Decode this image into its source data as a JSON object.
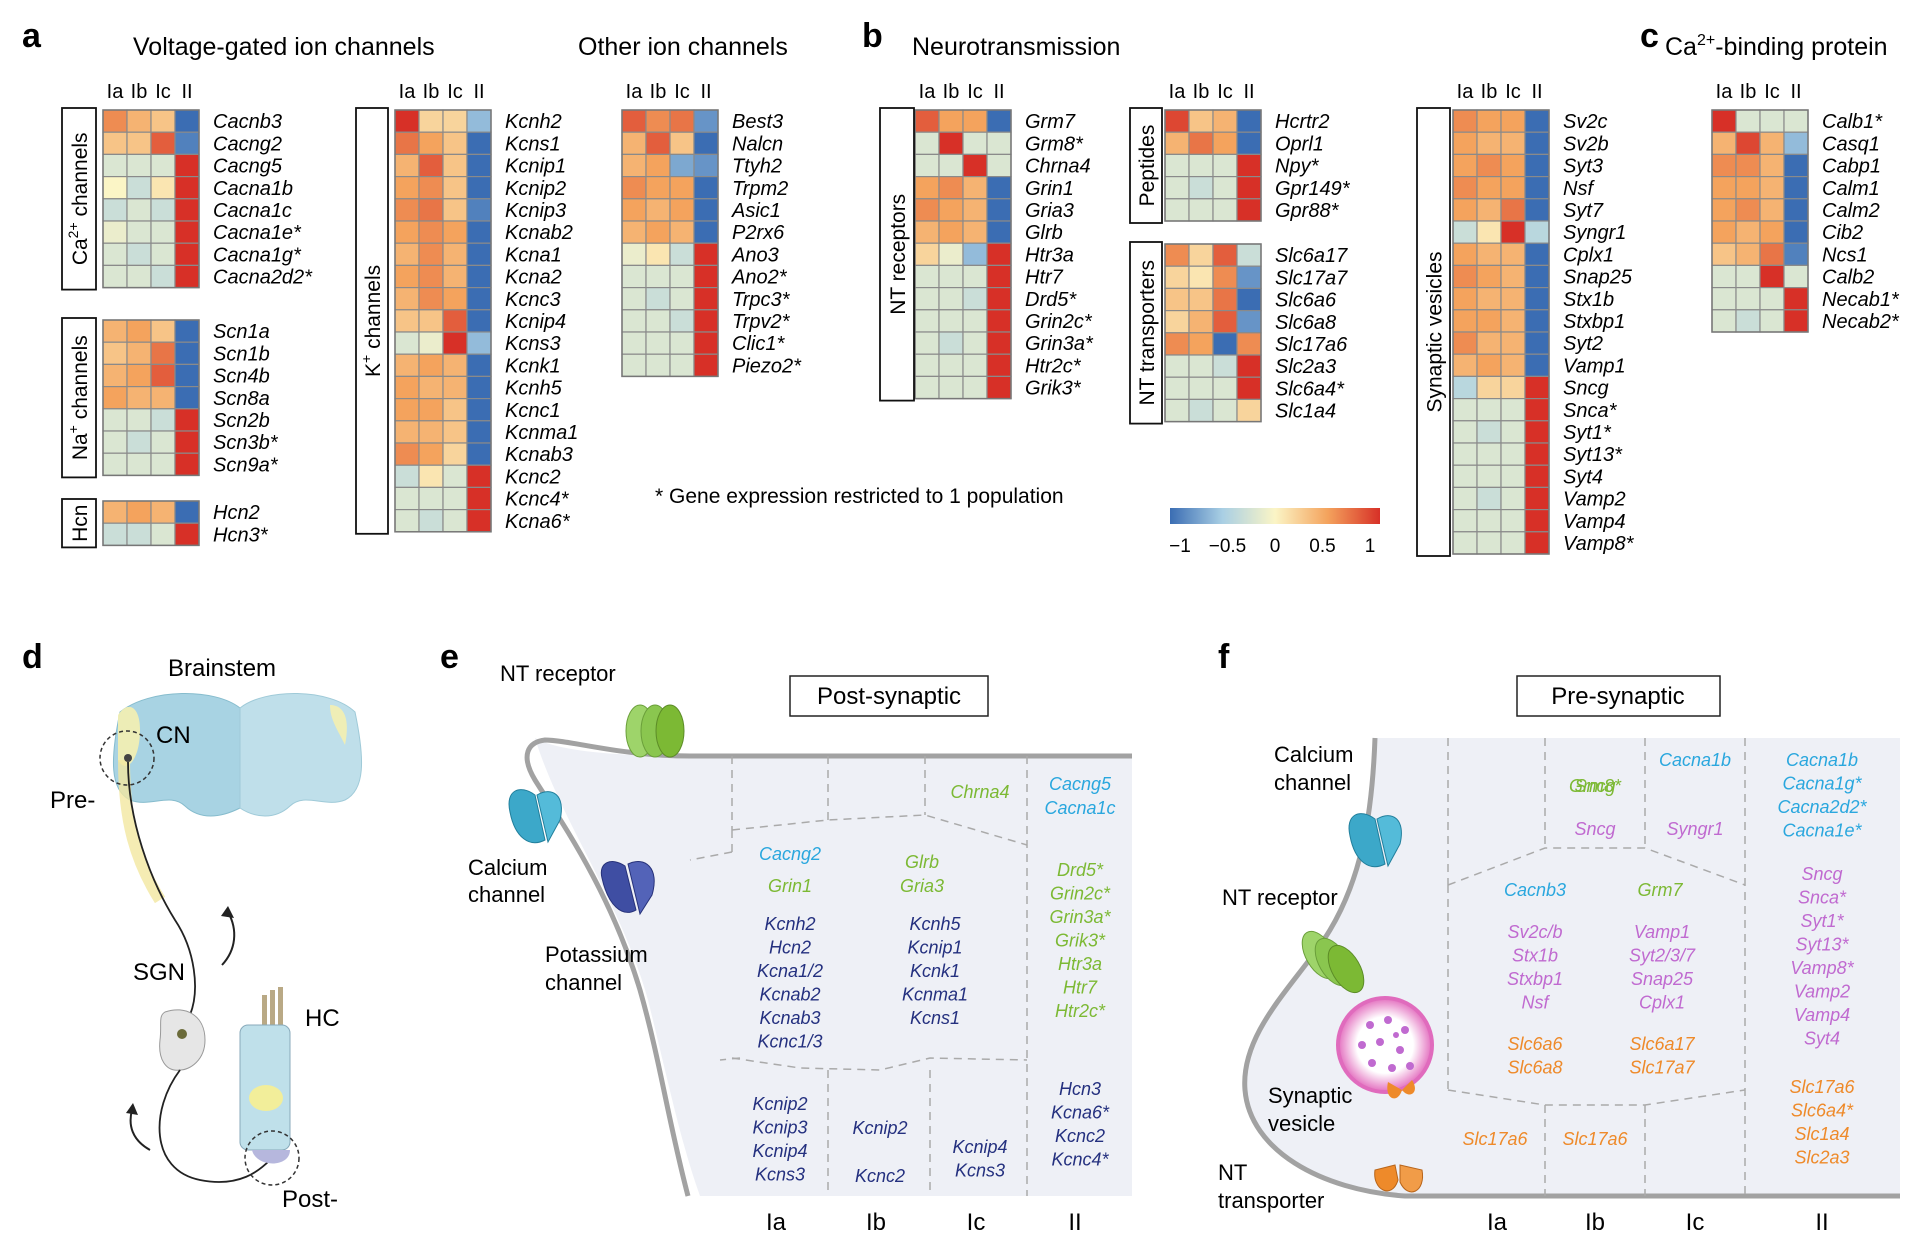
{
  "panels": {
    "a": {
      "letter": "a",
      "title_vg": "Voltage-gated ion channels",
      "title_other": "Other ion channels"
    },
    "b": {
      "letter": "b",
      "title": "Neurotransmission"
    },
    "c": {
      "letter": "c",
      "title_main": "Ca",
      "title_sup": "2+",
      "title_rest": "-binding protein"
    },
    "d": {
      "letter": "d"
    },
    "e": {
      "letter": "e"
    },
    "f": {
      "letter": "f"
    }
  },
  "column_headers": [
    "Ia",
    "Ib",
    "Ic",
    "II"
  ],
  "note": "* Gene expression restricted to 1 population",
  "colorbar": {
    "ticks": [
      "−1",
      "−0.5",
      "0",
      "0.5",
      "1"
    ],
    "colors": [
      "#3b6db3",
      "#a9cfe4",
      "#fbf5c6",
      "#f4a35d",
      "#d73027"
    ]
  },
  "heatmaps": [
    {
      "id": "ca-channels",
      "group_main": "Ca",
      "group_sup": "2+",
      "group_rest": " channels",
      "genes": [
        "Cacnb3",
        "Cacng2",
        "Cacng5",
        "Cacna1b",
        "Cacna1c",
        "Cacna1e*",
        "Cacna1g*",
        "Cacna2d2*"
      ],
      "values": [
        [
          0.6,
          0.4,
          0.3,
          -1
        ],
        [
          0.3,
          0.3,
          0.8,
          -0.9
        ],
        [
          -0.2,
          -0.2,
          -0.2,
          1
        ],
        [
          0,
          -0.3,
          0.1,
          1
        ],
        [
          -0.3,
          -0.2,
          -0.3,
          1
        ],
        [
          -0.1,
          -0.2,
          -0.2,
          1
        ],
        [
          -0.2,
          -0.3,
          -0.2,
          1
        ],
        [
          -0.2,
          -0.2,
          -0.3,
          1
        ]
      ]
    },
    {
      "id": "na-channels",
      "group_main": "Na",
      "group_sup": "+",
      "group_rest": " channels",
      "genes": [
        "Scn1a",
        "Scn1b",
        "Scn4b",
        "Scn8a",
        "Scn2b",
        "Scn3b*",
        "Scn9a*"
      ],
      "values": [
        [
          0.4,
          0.5,
          0.3,
          -1
        ],
        [
          0.3,
          0.4,
          0.7,
          -1
        ],
        [
          0.4,
          0.5,
          0.8,
          -1
        ],
        [
          0.5,
          0.4,
          0.4,
          -1
        ],
        [
          -0.2,
          -0.2,
          -0.3,
          1
        ],
        [
          -0.2,
          -0.3,
          -0.2,
          1
        ],
        [
          -0.2,
          -0.2,
          -0.2,
          1
        ]
      ]
    },
    {
      "id": "hcn",
      "group_main": "Hcn",
      "group_sup": "",
      "group_rest": "",
      "genes": [
        "Hcn2",
        "Hcn3*"
      ],
      "values": [
        [
          0.4,
          0.5,
          0.4,
          -1
        ],
        [
          -0.3,
          -0.3,
          -0.2,
          1
        ]
      ]
    },
    {
      "id": "k-channels",
      "group_main": "K",
      "group_sup": "+",
      "group_rest": " channels",
      "genes": [
        "Kcnh2",
        "Kcns1",
        "Kcnip1",
        "Kcnip2",
        "Kcnip3",
        "Kcnab2",
        "Kcna1",
        "Kcna2",
        "Kcnc3",
        "Kcnip4",
        "Kcns3",
        "Kcnk1",
        "Kcnh5",
        "Kcnc1",
        "Kcnma1",
        "Kcnab3",
        "Kcnc2",
        "Kcnc4*",
        "Kcna6*"
      ],
      "values": [
        [
          1,
          0.2,
          0.2,
          -0.6
        ],
        [
          0.7,
          0.5,
          0.3,
          -1
        ],
        [
          0.4,
          0.8,
          0.3,
          -1
        ],
        [
          0.5,
          0.6,
          0.3,
          -1
        ],
        [
          0.6,
          0.7,
          0.3,
          -0.9
        ],
        [
          0.5,
          0.6,
          0.5,
          -1
        ],
        [
          0.4,
          0.6,
          0.4,
          -1
        ],
        [
          0.5,
          0.6,
          0.4,
          -1
        ],
        [
          0.4,
          0.6,
          0.5,
          -1
        ],
        [
          0.3,
          0.3,
          0.8,
          -1
        ],
        [
          -0.2,
          -0.1,
          1,
          -0.6
        ],
        [
          0.4,
          0.5,
          0.4,
          -1
        ],
        [
          0.5,
          0.4,
          0.4,
          -1
        ],
        [
          0.5,
          0.5,
          0.3,
          -1
        ],
        [
          0.4,
          0.4,
          0.3,
          -1
        ],
        [
          0.6,
          0.5,
          0.2,
          -1
        ],
        [
          -0.3,
          0.1,
          -0.2,
          1
        ],
        [
          -0.2,
          -0.2,
          -0.2,
          1
        ],
        [
          -0.2,
          -0.3,
          -0.2,
          1
        ]
      ]
    },
    {
      "id": "other-channels",
      "group_main": "",
      "group_sup": "",
      "group_rest": "",
      "genes": [
        "Best3",
        "Nalcn",
        "Ttyh2",
        "Trpm2",
        "Asic1",
        "P2rx6",
        "Ano3",
        "Ano2*",
        "Trpc3*",
        "Trpv2*",
        "Clic1*",
        "Piezo2*"
      ],
      "values": [
        [
          0.8,
          0.6,
          0.7,
          -0.8
        ],
        [
          0.4,
          0.8,
          0.3,
          -1
        ],
        [
          0.4,
          0.5,
          -0.7,
          -0.8
        ],
        [
          0.6,
          0.5,
          0.5,
          -1
        ],
        [
          0.5,
          0.4,
          0.5,
          -1
        ],
        [
          0.4,
          0.5,
          0.4,
          -1
        ],
        [
          -0.1,
          0.1,
          -0.3,
          1
        ],
        [
          -0.2,
          -0.2,
          -0.2,
          1
        ],
        [
          -0.2,
          -0.3,
          -0.2,
          1
        ],
        [
          -0.2,
          -0.2,
          -0.3,
          1
        ],
        [
          -0.2,
          -0.2,
          -0.2,
          1
        ],
        [
          -0.2,
          -0.2,
          -0.2,
          1
        ]
      ]
    },
    {
      "id": "nt-receptors",
      "group_main": "NT receptors",
      "group_sup": "",
      "group_rest": "",
      "genes": [
        "Grm7",
        "Grm8*",
        "Chrna4",
        "Grin1",
        "Gria3",
        "Glrb",
        "Htr3a",
        "Htr7",
        "Drd5*",
        "Grin2c*",
        "Grin3a*",
        "Htr2c*",
        "Grik3*"
      ],
      "values": [
        [
          0.8,
          0.5,
          0.5,
          -1
        ],
        [
          -0.2,
          1,
          -0.2,
          -0.2
        ],
        [
          -0.2,
          -0.2,
          1,
          -0.2
        ],
        [
          0.5,
          0.6,
          0.4,
          -1
        ],
        [
          0.6,
          0.5,
          0.4,
          -1
        ],
        [
          0.4,
          0.5,
          0.4,
          -1
        ],
        [
          0.2,
          -0.1,
          -0.6,
          1
        ],
        [
          -0.2,
          -0.2,
          -0.2,
          1
        ],
        [
          -0.2,
          -0.2,
          -0.3,
          1
        ],
        [
          -0.2,
          -0.2,
          -0.2,
          1
        ],
        [
          -0.2,
          -0.3,
          -0.2,
          1
        ],
        [
          -0.2,
          -0.2,
          -0.2,
          1
        ],
        [
          -0.2,
          -0.2,
          -0.2,
          1
        ]
      ]
    },
    {
      "id": "peptides",
      "group_main": "Peptides",
      "group_sup": "",
      "group_rest": "",
      "genes": [
        "Hcrtr2",
        "Oprl1",
        "Npy*",
        "Gpr149*",
        "Gpr88*"
      ],
      "values": [
        [
          0.9,
          0.3,
          0.4,
          -1
        ],
        [
          0.4,
          0.7,
          0.5,
          -1
        ],
        [
          -0.2,
          -0.2,
          -0.2,
          1
        ],
        [
          -0.2,
          -0.3,
          -0.2,
          1
        ],
        [
          -0.2,
          -0.2,
          -0.2,
          1
        ]
      ]
    },
    {
      "id": "nt-transporters",
      "group_main": "NT transporters",
      "group_sup": "",
      "group_rest": "",
      "genes": [
        "Slc6a17",
        "Slc17a7",
        "Slc6a6",
        "Slc6a8",
        "Slc17a6",
        "Slc2a3",
        "Slc6a4*",
        "Slc1a4"
      ],
      "values": [
        [
          0.6,
          0.2,
          0.8,
          -0.3
        ],
        [
          0.2,
          0.1,
          0.6,
          -0.8
        ],
        [
          0.3,
          0.3,
          0.7,
          -1
        ],
        [
          0.2,
          0.4,
          0.8,
          -0.8
        ],
        [
          0.6,
          0.5,
          -1,
          0.6
        ],
        [
          -0.2,
          -0.2,
          -0.3,
          1
        ],
        [
          -0.2,
          -0.2,
          -0.2,
          1
        ],
        [
          -0.2,
          -0.3,
          -0.2,
          0.2
        ]
      ]
    },
    {
      "id": "synaptic-vesicles",
      "group_main": "Synaptic vesicles",
      "group_sup": "",
      "group_rest": "",
      "genes": [
        "Sv2c",
        "Sv2b",
        "Syt3",
        "Nsf",
        "Syt7",
        "Syngr1",
        "Cplx1",
        "Snap25",
        "Stx1b",
        "Stxbp1",
        "Syt2",
        "Vamp1",
        "Sncg",
        "Snca*",
        "Syt1*",
        "Syt13*",
        "Syt4",
        "Vamp2",
        "Vamp4",
        "Vamp8*"
      ],
      "values": [
        [
          0.6,
          0.5,
          0.5,
          -1
        ],
        [
          0.5,
          0.4,
          0.4,
          -1
        ],
        [
          0.5,
          0.6,
          0.5,
          -1
        ],
        [
          0.6,
          0.5,
          0.5,
          -1
        ],
        [
          0.5,
          0.4,
          0.7,
          -1
        ],
        [
          -0.3,
          0.1,
          1,
          -0.4
        ],
        [
          0.5,
          0.4,
          0.4,
          -1
        ],
        [
          0.6,
          0.5,
          0.4,
          -1
        ],
        [
          0.5,
          0.4,
          0.4,
          -1
        ],
        [
          0.5,
          0.5,
          0.4,
          -1
        ],
        [
          0.6,
          0.4,
          0.4,
          -1
        ],
        [
          0.4,
          0.5,
          0.4,
          -1
        ],
        [
          -0.4,
          0.2,
          0.2,
          1
        ],
        [
          -0.2,
          -0.2,
          -0.2,
          1
        ],
        [
          -0.2,
          -0.3,
          -0.2,
          1
        ],
        [
          -0.2,
          -0.2,
          -0.2,
          1
        ],
        [
          -0.2,
          -0.2,
          -0.2,
          1
        ],
        [
          -0.2,
          -0.3,
          -0.2,
          1
        ],
        [
          -0.2,
          -0.2,
          -0.2,
          1
        ],
        [
          -0.2,
          -0.2,
          -0.2,
          1
        ]
      ]
    },
    {
      "id": "ca-binding",
      "group_main": "",
      "group_sup": "",
      "group_rest": "",
      "genes": [
        "Calb1*",
        "Casq1",
        "Cabp1",
        "Calm1",
        "Calm2",
        "Cib2",
        "Ncs1",
        "Calb2",
        "Necab1*",
        "Necab2*"
      ],
      "values": [
        [
          1,
          -0.2,
          -0.2,
          -0.2
        ],
        [
          0.4,
          0.9,
          0.4,
          -0.6
        ],
        [
          0.6,
          0.6,
          0.4,
          -1
        ],
        [
          0.5,
          0.5,
          0.4,
          -1
        ],
        [
          0.5,
          0.6,
          0.4,
          -1
        ],
        [
          0.5,
          0.4,
          0.5,
          -1
        ],
        [
          0.3,
          0.4,
          0.7,
          -0.9
        ],
        [
          -0.2,
          -0.2,
          1,
          -0.2
        ],
        [
          -0.2,
          -0.2,
          -0.2,
          1
        ],
        [
          -0.2,
          -0.3,
          -0.2,
          1
        ]
      ]
    }
  ],
  "panel_d": {
    "brainstem": "Brainstem",
    "cn": "CN",
    "pre": "Pre-",
    "sgn": "SGN",
    "hc": "HC",
    "post": "Post-"
  },
  "panel_e": {
    "box_title": "Post-synaptic",
    "labels": {
      "nt_receptor": "NT receptor",
      "calcium_channel": [
        "Calcium",
        "channel"
      ],
      "potassium_channel": [
        "Potassium",
        "channel"
      ]
    },
    "columns": [
      "Ia",
      "Ib",
      "Ic",
      "II"
    ],
    "top": {
      "ic": [
        "Chrna4"
      ],
      "ii": [
        "Cacng5",
        "Cacna1c"
      ]
    },
    "mid": {
      "ia_blue": [
        "Cacng2"
      ],
      "ia_green": [
        "Grin1"
      ],
      "ia_navy": [
        "Kcnh2",
        "Hcn2",
        "Kcna1/2",
        "Kcnab2",
        "Kcnab3",
        "Kcnc1/3"
      ],
      "ib_green": [
        "Glrb",
        "Gria3"
      ],
      "ib_navy": [
        "Kcnh5",
        "Kcnip1",
        "Kcnk1",
        "Kcnma1",
        "Kcns1"
      ],
      "ii_green": [
        "Drd5*",
        "Grin2c*",
        "Grin3a*",
        "Grik3*",
        "Htr3a",
        "Htr7",
        "Htr2c*"
      ]
    },
    "bottom": {
      "ia": [
        "Kcnip2",
        "Kcnip3",
        "Kcnip4",
        "Kcns3"
      ],
      "ib": [
        "Kcnip2",
        "Kcnc2"
      ],
      "ic": [
        "Kcnip4",
        "Kcns3"
      ],
      "ii": [
        "Hcn3",
        "Kcna6*",
        "Kcnc2",
        "Kcnc4*"
      ]
    }
  },
  "panel_f": {
    "box_title": "Pre-synaptic",
    "labels": {
      "calcium_channel": [
        "Calcium",
        "channel"
      ],
      "nt_receptor": "NT receptor",
      "synaptic_vesicle": [
        "Synaptic",
        "vesicle"
      ],
      "nt_transporter": [
        "NT",
        "transporter"
      ]
    },
    "columns": [
      "Ia",
      "Ib",
      "Ic",
      "II"
    ],
    "top": {
      "ib": [
        "Grm8*",
        "Sncg"
      ],
      "ic": [
        "Cacna1b",
        "Syngr1"
      ],
      "ii": [
        "Cacna1b",
        "Cacna1g*",
        "Cacna2d2*",
        "Cacna1e*"
      ]
    },
    "mid": {
      "ia_blue": [
        "Cacnb3"
      ],
      "ia_pink": [
        "Sv2c/b",
        "Stx1b",
        "Stxbp1",
        "Nsf"
      ],
      "ia_orange": [
        "Slc6a6",
        "Slc6a8"
      ],
      "ib_green": [
        "Grm7"
      ],
      "ib_pink": [
        "Vamp1",
        "Syt2/3/7",
        "Snap25",
        "Cplx1"
      ],
      "ib_orange": [
        "Slc6a17",
        "Slc17a7"
      ],
      "ii_pink": [
        "Sncg",
        "Snca*",
        "Syt1*",
        "Syt13*",
        "Vamp8*",
        "Vamp2",
        "Vamp4",
        "Syt4"
      ],
      "ii_orange": [
        "Slc17a6",
        "Slc6a4*",
        "Slc1a4",
        "Slc2a3"
      ]
    },
    "bottom": {
      "ia": [
        "Slc17a6"
      ],
      "ib": [
        "Slc17a6"
      ]
    }
  },
  "colors": {
    "navy": "#24307f",
    "green": "#7cb934",
    "blue": "#2aa7de",
    "pink": "#c06ad0",
    "orange": "#ee8a2a"
  }
}
